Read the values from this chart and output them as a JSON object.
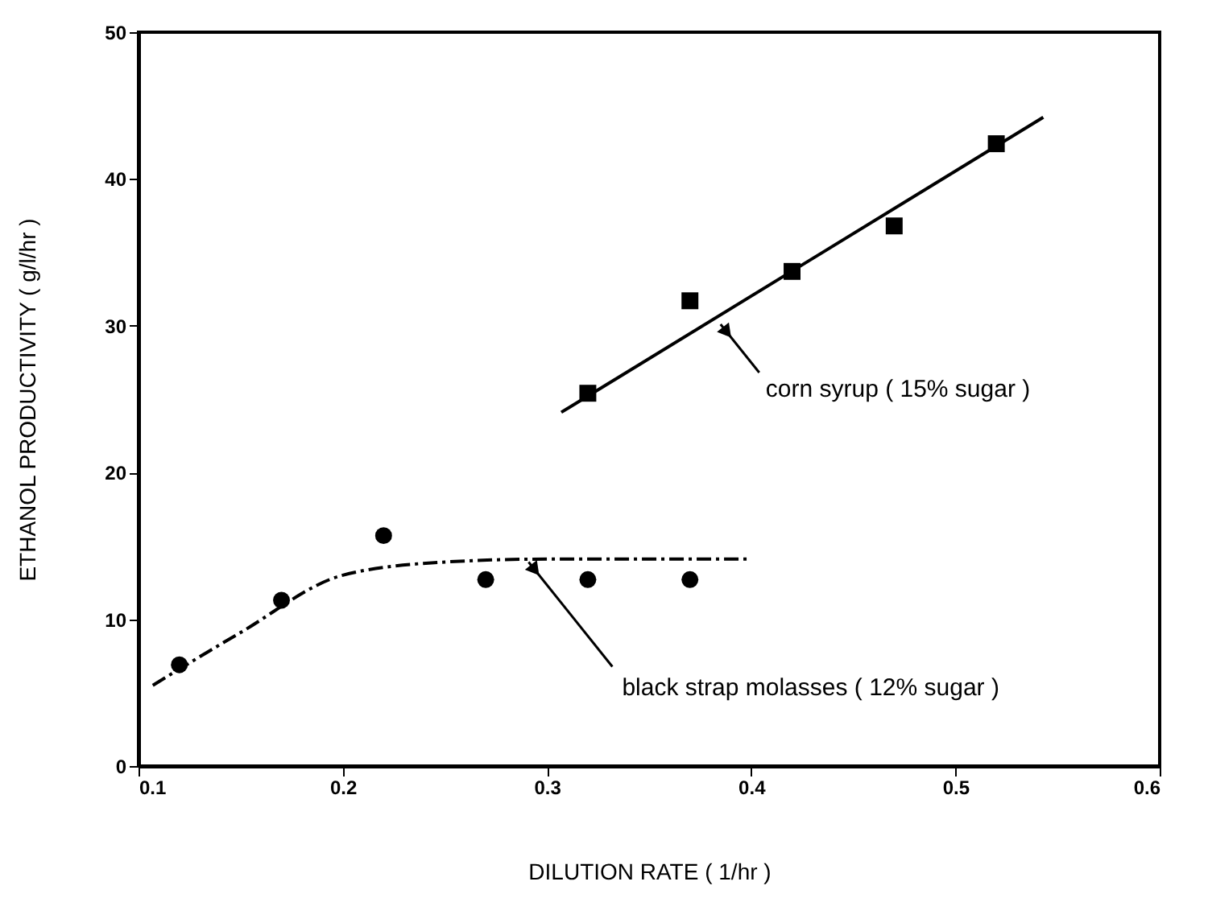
{
  "chart_data": {
    "type": "scatter",
    "xlabel": "DILUTION RATE ( 1/hr )",
    "ylabel": "ETHANOL PRODUCTIVITY ( g/l/hr )",
    "xlim": [
      0.1,
      0.6
    ],
    "xticks": [
      0.1,
      0.2,
      0.3,
      0.4,
      0.5,
      0.6
    ],
    "ylim": [
      0,
      50
    ],
    "yticks": [
      0,
      10,
      20,
      30,
      40,
      50
    ],
    "grid": false,
    "series": [
      {
        "marker": "square",
        "color": "#000000",
        "x": [
          0.32,
          0.37,
          0.42,
          0.47,
          0.52
        ],
        "values": [
          25.4,
          31.7,
          33.7,
          36.8,
          42.4
        ]
      },
      {
        "type": "line",
        "line_style": "solid",
        "color": "#000000",
        "x": [
          0.307,
          0.543
        ],
        "values": [
          24.1,
          44.2
        ]
      },
      {
        "marker": "circle",
        "color": "#000000",
        "x": [
          0.12,
          0.17,
          0.22,
          0.27,
          0.32,
          0.37
        ],
        "values": [
          6.9,
          11.3,
          15.7,
          12.7,
          12.7,
          12.7
        ]
      },
      {
        "type": "line",
        "line_style": "dashed",
        "color": "#000000",
        "x": [
          0.107,
          0.15,
          0.2,
          0.25,
          0.3,
          0.4
        ],
        "values": [
          5.5,
          9.1,
          13.0,
          13.9,
          14.1,
          14.1
        ]
      }
    ],
    "annotations": [
      {
        "text": "corn syrup ( 15% sugar )",
        "x": 0.385,
        "y": 30.1
      },
      {
        "text": "black strap molasses ( 12% sugar )",
        "x": 0.291,
        "y": 13.9
      }
    ]
  }
}
